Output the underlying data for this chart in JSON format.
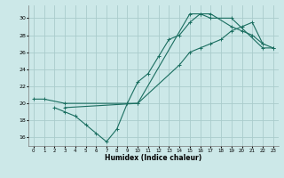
{
  "xlabel": "Humidex (Indice chaleur)",
  "bg_color": "#cce8e8",
  "grid_color": "#aacccc",
  "line_color": "#1a6e60",
  "xlim": [
    -0.5,
    23.5
  ],
  "ylim": [
    15,
    31.5
  ],
  "xticks": [
    0,
    1,
    2,
    3,
    4,
    5,
    6,
    7,
    8,
    9,
    10,
    11,
    12,
    13,
    14,
    15,
    16,
    17,
    18,
    19,
    20,
    21,
    22,
    23
  ],
  "yticks": [
    16,
    18,
    20,
    22,
    24,
    26,
    28,
    30
  ],
  "curve1_x": [
    0,
    1,
    3,
    10,
    15,
    16,
    17,
    19,
    22,
    23
  ],
  "curve1_y": [
    20.5,
    20.5,
    20.0,
    20.0,
    30.5,
    30.5,
    30.0,
    30.0,
    26.5,
    26.5
  ],
  "curve2_x": [
    2,
    3,
    4,
    5,
    6,
    7,
    8,
    9,
    10,
    11,
    12,
    13,
    14,
    15,
    16,
    17,
    19,
    20,
    21,
    22
  ],
  "curve2_y": [
    19.5,
    19.0,
    18.5,
    17.5,
    16.5,
    15.5,
    17.0,
    20.0,
    22.5,
    23.5,
    25.5,
    27.5,
    28.0,
    29.5,
    30.5,
    30.5,
    29.0,
    28.5,
    28.0,
    27.0
  ],
  "curve3_x": [
    3,
    10,
    14,
    15,
    16,
    17,
    18,
    19,
    20,
    21,
    22,
    23
  ],
  "curve3_y": [
    19.5,
    20.0,
    24.5,
    26.0,
    26.5,
    27.0,
    27.5,
    28.5,
    29.0,
    29.5,
    27.0,
    26.5
  ]
}
